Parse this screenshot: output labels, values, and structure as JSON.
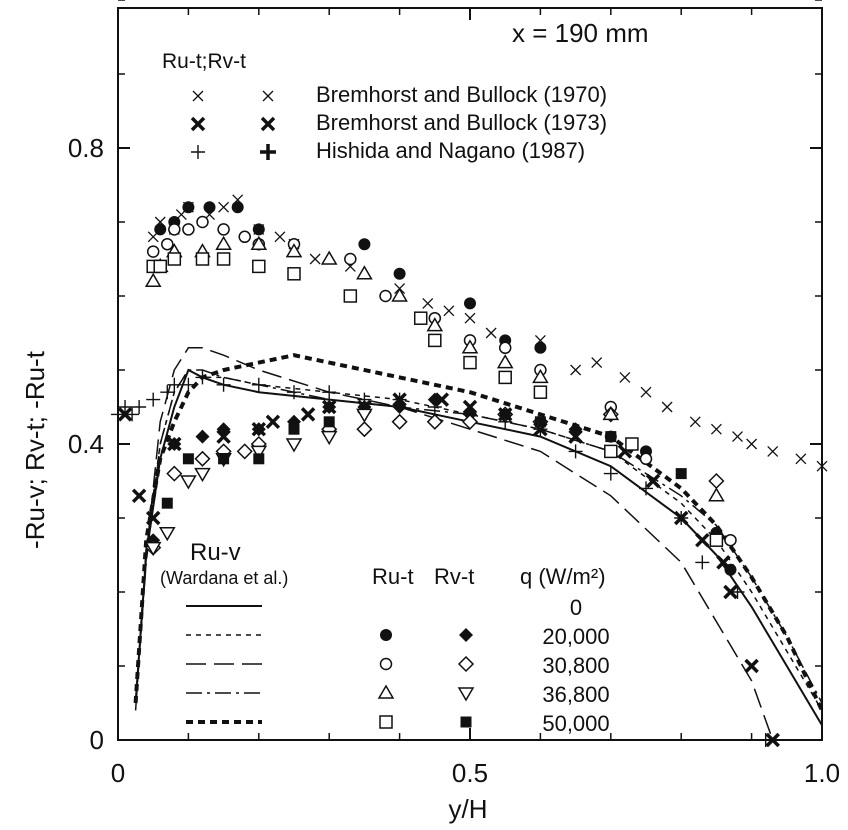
{
  "chart_data": {
    "type": "scatter",
    "title": "x = 190 mm",
    "xlabel": "y/H",
    "ylabel": "-Ru-v; Rv-t; -Ru-t",
    "xlim": [
      0,
      1.0
    ],
    "ylim": [
      0,
      1.0
    ],
    "x_ticks": [
      "0",
      "0.5",
      "1.0"
    ],
    "y_ticks": [
      "0",
      "0.4",
      "0.8"
    ],
    "legend_top_header": "Ru-t;Rv-t",
    "legend_bottom": {
      "col_ruv": "Ru-v",
      "col_ruv_sub": "(Wardana et al.)",
      "col_rut": "Ru-t",
      "col_rvt": "Rv-t",
      "col_q": "q (W/m²)"
    },
    "series": [
      {
        "name": "Bremhorst and Bullock (1970)",
        "marker": "x",
        "role": "Ru-t;Rv-t",
        "x": [
          0.05,
          0.06,
          0.08,
          0.09,
          0.1,
          0.13,
          0.15,
          0.17,
          0.2,
          0.23,
          0.25,
          0.28,
          0.33,
          0.4,
          0.44,
          0.47,
          0.5,
          0.53,
          0.6,
          0.65,
          0.68,
          0.72,
          0.75,
          0.78,
          0.82,
          0.85,
          0.88,
          0.9,
          0.93,
          0.97,
          1.0
        ],
        "y": [
          0.68,
          0.7,
          0.69,
          0.71,
          0.72,
          0.71,
          0.72,
          0.73,
          0.69,
          0.68,
          0.67,
          0.65,
          0.64,
          0.61,
          0.59,
          0.58,
          0.57,
          0.55,
          0.54,
          0.5,
          0.51,
          0.49,
          0.47,
          0.45,
          0.43,
          0.42,
          0.41,
          0.4,
          0.39,
          0.38,
          0.37
        ]
      },
      {
        "name": "Bremhorst and Bullock (1973)",
        "marker": "X",
        "role": "Ru-t;Rv-t",
        "x": [
          0.01,
          0.03,
          0.05,
          0.08,
          0.15,
          0.2,
          0.22,
          0.27,
          0.3,
          0.35,
          0.4,
          0.46,
          0.5,
          0.55,
          0.6,
          0.65,
          0.72,
          0.76,
          0.8,
          0.83,
          0.86,
          0.87,
          0.9,
          0.93
        ],
        "y": [
          0.44,
          0.33,
          0.3,
          0.4,
          0.41,
          0.42,
          0.43,
          0.44,
          0.45,
          0.45,
          0.46,
          0.46,
          0.45,
          0.44,
          0.42,
          0.41,
          0.39,
          0.35,
          0.3,
          0.27,
          0.24,
          0.2,
          0.1,
          0.0
        ]
      },
      {
        "name": "Hishida and Nagano (1987)",
        "marker": "+",
        "role": "Ru-t;Rv-t",
        "x": [
          0.0,
          0.01,
          0.02,
          0.03,
          0.05,
          0.07,
          0.08,
          0.1,
          0.12,
          0.15,
          0.2,
          0.25,
          0.3,
          0.35,
          0.4,
          0.45,
          0.5,
          0.55,
          0.6,
          0.65,
          0.7,
          0.75,
          0.8,
          0.83,
          0.88,
          0.92
        ],
        "y": [
          0.44,
          0.45,
          0.44,
          0.45,
          0.46,
          0.47,
          0.48,
          0.48,
          0.49,
          0.48,
          0.48,
          0.47,
          0.47,
          0.46,
          0.46,
          0.45,
          0.44,
          0.43,
          0.42,
          0.39,
          0.36,
          0.34,
          0.3,
          0.24,
          0.2,
          0.0
        ]
      },
      {
        "name": "q=20,000 Ru-t",
        "marker": "filled-circle",
        "x": [
          0.06,
          0.08,
          0.1,
          0.13,
          0.17,
          0.2,
          0.35,
          0.4,
          0.5,
          0.55,
          0.6,
          0.7,
          0.75,
          0.85,
          0.87
        ],
        "y": [
          0.69,
          0.7,
          0.72,
          0.72,
          0.72,
          0.69,
          0.67,
          0.63,
          0.59,
          0.54,
          0.53,
          0.41,
          0.39,
          0.28,
          0.23
        ]
      },
      {
        "name": "q=20,000 Rv-t",
        "marker": "filled-diamond",
        "x": [
          0.05,
          0.08,
          0.12,
          0.15,
          0.2,
          0.25,
          0.3,
          0.35,
          0.4,
          0.45,
          0.5,
          0.55,
          0.6,
          0.65
        ],
        "y": [
          0.27,
          0.4,
          0.41,
          0.42,
          0.42,
          0.43,
          0.45,
          0.45,
          0.45,
          0.46,
          0.44,
          0.44,
          0.43,
          0.42
        ]
      },
      {
        "name": "q=30,800 Ru-t",
        "marker": "open-circle",
        "x": [
          0.05,
          0.07,
          0.08,
          0.1,
          0.12,
          0.15,
          0.18,
          0.2,
          0.25,
          0.33,
          0.38,
          0.45,
          0.5,
          0.55,
          0.6,
          0.7,
          0.75,
          0.87
        ],
        "y": [
          0.66,
          0.67,
          0.69,
          0.69,
          0.7,
          0.69,
          0.68,
          0.67,
          0.67,
          0.65,
          0.6,
          0.57,
          0.54,
          0.53,
          0.5,
          0.45,
          0.38,
          0.27
        ]
      },
      {
        "name": "q=30,800 Rv-t",
        "marker": "open-diamond",
        "x": [
          0.05,
          0.08,
          0.12,
          0.15,
          0.18,
          0.2,
          0.3,
          0.35,
          0.4,
          0.45,
          0.5,
          0.55,
          0.6,
          0.7,
          0.85
        ],
        "y": [
          0.26,
          0.36,
          0.38,
          0.39,
          0.39,
          0.4,
          0.42,
          0.42,
          0.43,
          0.43,
          0.43,
          0.44,
          0.43,
          0.44,
          0.35
        ]
      },
      {
        "name": "q=36,800 Ru-t",
        "marker": "open-triangle-up",
        "x": [
          0.05,
          0.06,
          0.08,
          0.12,
          0.15,
          0.2,
          0.25,
          0.3,
          0.35,
          0.4,
          0.45,
          0.5,
          0.55,
          0.6,
          0.7,
          0.85
        ],
        "y": [
          0.62,
          0.64,
          0.66,
          0.66,
          0.67,
          0.67,
          0.66,
          0.65,
          0.63,
          0.6,
          0.56,
          0.53,
          0.51,
          0.49,
          0.44,
          0.33
        ]
      },
      {
        "name": "q=36,800 Rv-t",
        "marker": "open-triangle-down",
        "x": [
          0.05,
          0.07,
          0.1,
          0.12,
          0.15,
          0.2,
          0.25,
          0.3,
          0.35
        ],
        "y": [
          0.26,
          0.28,
          0.35,
          0.36,
          0.38,
          0.39,
          0.4,
          0.41,
          0.44
        ]
      },
      {
        "name": "q=50,000 Ru-t",
        "marker": "open-square",
        "x": [
          0.05,
          0.06,
          0.08,
          0.12,
          0.15,
          0.2,
          0.25,
          0.33,
          0.43,
          0.45,
          0.5,
          0.55,
          0.6,
          0.7,
          0.73,
          0.85
        ],
        "y": [
          0.64,
          0.64,
          0.65,
          0.65,
          0.65,
          0.64,
          0.63,
          0.6,
          0.57,
          0.54,
          0.51,
          0.49,
          0.47,
          0.39,
          0.4,
          0.27
        ]
      },
      {
        "name": "q=50,000 Rv-t",
        "marker": "filled-square",
        "x": [
          0.07,
          0.1,
          0.15,
          0.2,
          0.25,
          0.3,
          0.55,
          0.6,
          0.7,
          0.8
        ],
        "y": [
          0.32,
          0.38,
          0.38,
          0.38,
          0.42,
          0.43,
          0.44,
          0.43,
          0.41,
          0.36
        ]
      },
      {
        "name": "q=0 Ru-v",
        "line": "solid",
        "x": [
          0.025,
          0.04,
          0.06,
          0.08,
          0.1,
          0.12,
          0.15,
          0.2,
          0.3,
          0.4,
          0.5,
          0.6,
          0.7,
          0.8,
          0.85,
          0.9,
          0.95,
          1.0
        ],
        "y": [
          0.05,
          0.25,
          0.38,
          0.45,
          0.5,
          0.49,
          0.48,
          0.47,
          0.46,
          0.45,
          0.43,
          0.41,
          0.37,
          0.3,
          0.25,
          0.18,
          0.1,
          0.02
        ]
      },
      {
        "name": "q=20,000 Ru-v",
        "line": "short-dash",
        "x": [
          0.025,
          0.04,
          0.06,
          0.08,
          0.1,
          0.12,
          0.15,
          0.2,
          0.3,
          0.4,
          0.5,
          0.6,
          0.7,
          0.8,
          0.85,
          0.9,
          0.95,
          1.0
        ],
        "y": [
          0.05,
          0.26,
          0.4,
          0.47,
          0.5,
          0.49,
          0.49,
          0.48,
          0.47,
          0.46,
          0.44,
          0.42,
          0.39,
          0.32,
          0.27,
          0.2,
          0.12,
          0.04
        ]
      },
      {
        "name": "q=30,800 Ru-v",
        "line": "long-dash",
        "x": [
          0.025,
          0.04,
          0.06,
          0.08,
          0.1,
          0.12,
          0.15,
          0.2,
          0.3,
          0.4,
          0.5,
          0.6,
          0.7,
          0.8,
          0.85,
          0.9,
          0.93
        ],
        "y": [
          0.04,
          0.25,
          0.43,
          0.5,
          0.53,
          0.53,
          0.52,
          0.5,
          0.47,
          0.45,
          0.42,
          0.39,
          0.33,
          0.24,
          0.16,
          0.08,
          0.0
        ]
      },
      {
        "name": "q=36,800 Ru-v",
        "line": "dash-dot",
        "x": [
          0.025,
          0.04,
          0.06,
          0.08,
          0.1,
          0.12,
          0.15,
          0.2,
          0.3,
          0.4,
          0.5,
          0.6,
          0.7,
          0.8,
          0.85,
          0.9,
          0.95,
          1.0
        ],
        "y": [
          0.05,
          0.24,
          0.4,
          0.47,
          0.5,
          0.5,
          0.49,
          0.48,
          0.46,
          0.45,
          0.44,
          0.42,
          0.39,
          0.33,
          0.29,
          0.22,
          0.14,
          0.05
        ]
      },
      {
        "name": "q=50,000 Ru-v",
        "line": "thick-dash",
        "x": [
          0.025,
          0.04,
          0.06,
          0.08,
          0.1,
          0.12,
          0.15,
          0.2,
          0.25,
          0.3,
          0.4,
          0.5,
          0.6,
          0.7,
          0.8,
          0.85,
          0.9,
          0.95,
          1.0
        ],
        "y": [
          0.05,
          0.27,
          0.38,
          0.43,
          0.47,
          0.49,
          0.5,
          0.51,
          0.52,
          0.51,
          0.49,
          0.47,
          0.44,
          0.41,
          0.34,
          0.29,
          0.22,
          0.14,
          0.04
        ]
      }
    ],
    "legend_rows": [
      {
        "q": "0",
        "line": "solid",
        "rut": null,
        "rvt": null
      },
      {
        "q": "20,000",
        "line": "short-dash",
        "rut": "filled-circle",
        "rvt": "filled-diamond"
      },
      {
        "q": "30,800",
        "line": "long-dash",
        "rut": "open-circle",
        "rvt": "open-diamond"
      },
      {
        "q": "36,800",
        "line": "dash-dot",
        "rut": "open-triangle-up",
        "rvt": "open-triangle-down"
      },
      {
        "q": "50,000",
        "line": "thick-dash",
        "rut": "open-square",
        "rvt": "filled-square"
      }
    ],
    "colors": {
      "ink": "#111111",
      "background": "#ffffff"
    }
  }
}
